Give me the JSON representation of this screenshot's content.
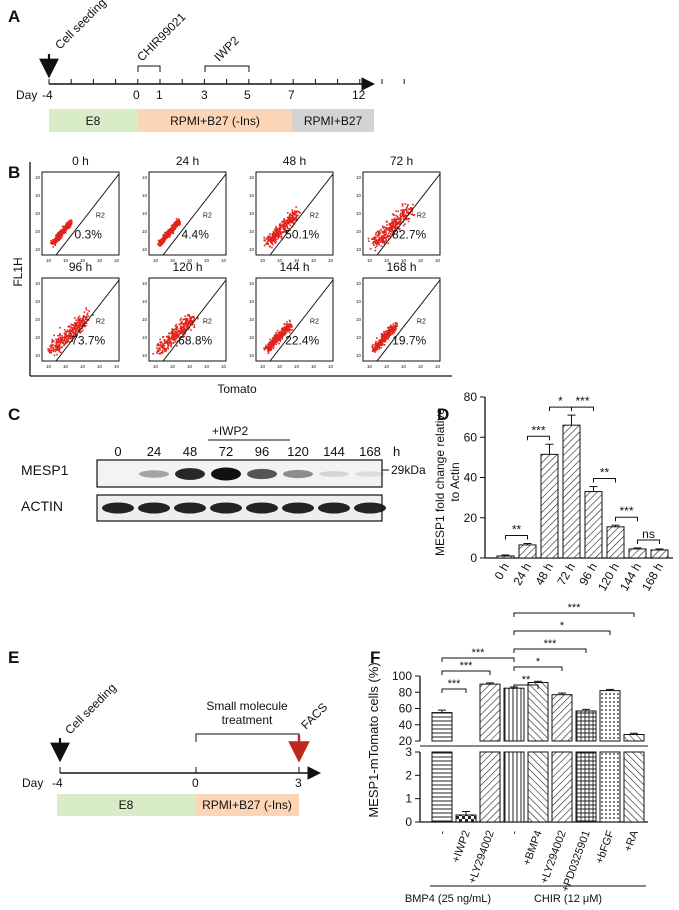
{
  "panels": {
    "a": "A",
    "b": "B",
    "c": "C",
    "d": "D",
    "e": "E",
    "f": "F"
  },
  "timeline_a": {
    "day_label": "Day",
    "ticks": [
      "-4",
      "0",
      "1",
      "3",
      "5",
      "7",
      "12"
    ],
    "annotations": {
      "seed": "Cell seeding",
      "chir": "CHIR99021",
      "iwp2": "IWP2"
    },
    "bars": [
      {
        "label": "E8",
        "color": "#d9ecc8"
      },
      {
        "label": "RPMI+B27 (-Ins)",
        "color": "#fbd5b5"
      },
      {
        "label": "RPMI+B27",
        "color": "#d3d3d3"
      }
    ]
  },
  "flow": {
    "ylabel": "FL1H",
    "xlabel": "Tomato",
    "gate_label": "R2",
    "plots": [
      {
        "time": "0 h",
        "pct": "0.3%",
        "value": 0.3
      },
      {
        "time": "24 h",
        "pct": "4.4%",
        "value": 4.4
      },
      {
        "time": "48 h",
        "pct": "50.1%",
        "value": 50.1
      },
      {
        "time": "72 h",
        "pct": "82.7%",
        "value": 82.7
      },
      {
        "time": "96 h",
        "pct": "73.7%",
        "value": 73.7
      },
      {
        "time": "120 h",
        "pct": "68.8%",
        "value": 68.8
      },
      {
        "time": "144 h",
        "pct": "22.4%",
        "value": 22.4
      },
      {
        "time": "168 h",
        "pct": "19.7%",
        "value": 19.7
      }
    ]
  },
  "western": {
    "lanes": [
      "0",
      "24",
      "48",
      "72",
      "96",
      "120",
      "144",
      "168"
    ],
    "unit": "h",
    "treatment": "+IWP2",
    "proteins": [
      "MESP1",
      "ACTIN"
    ],
    "size_marker": "29kDa",
    "mesp1_intensity": [
      0.0,
      0.3,
      0.85,
      1.0,
      0.65,
      0.4,
      0.08,
      0.05
    ]
  },
  "chart_data": [
    {
      "id": "D",
      "type": "bar",
      "categories": [
        "0 h",
        "24 h",
        "48 h",
        "72 h",
        "96 h",
        "120 h",
        "144 h",
        "168 h"
      ],
      "values": [
        1,
        6.5,
        51.5,
        66,
        33,
        15.5,
        4.5,
        4
      ],
      "errors": [
        0.5,
        0.7,
        5,
        5,
        2.5,
        0.8,
        0.5,
        0.5
      ],
      "ylabel": "MESP1 fold change relative to Actin",
      "ylabel_lines": [
        "MESP1 fold change relative",
        "to Actin"
      ],
      "ylim": [
        0,
        80
      ],
      "yticks": [
        "0",
        "20",
        "40",
        "60",
        "80"
      ],
      "significance": [
        {
          "from": 0,
          "to": 1,
          "label": "**"
        },
        {
          "from": 1,
          "to": 2,
          "label": "***"
        },
        {
          "from": 2,
          "to": 3,
          "label": "*"
        },
        {
          "from": 3,
          "to": 4,
          "label": "***"
        },
        {
          "from": 4,
          "to": 5,
          "label": "**"
        },
        {
          "from": 5,
          "to": 6,
          "label": "***"
        },
        {
          "from": 6,
          "to": 7,
          "label": "ns"
        }
      ]
    },
    {
      "id": "F",
      "type": "bar",
      "categories": [
        "-",
        "+IWP2",
        "+LY294002",
        "-",
        "+BMP4",
        "+LY294002",
        "+PD0325901",
        "+bFGF",
        "+RA"
      ],
      "values": [
        55,
        0.3,
        90,
        85,
        92,
        77,
        57,
        82,
        28
      ],
      "errors": [
        3,
        0.15,
        1.5,
        1.5,
        1.5,
        2,
        2,
        1.5,
        1.5
      ],
      "ylabel": "MESP1-mTomato cells (%)",
      "yticks_lower": [
        "0",
        "1",
        "2",
        "3"
      ],
      "yticks_upper": [
        "20",
        "40",
        "60",
        "80",
        "100"
      ],
      "axis_break": [
        3,
        20
      ],
      "groups": [
        {
          "label": "BMP4 (25 ng/mL)",
          "from": 0,
          "to": 2
        },
        {
          "label": "CHIR (12 μM)",
          "from": 3,
          "to": 8
        }
      ],
      "significance": [
        {
          "from": 0,
          "to": 1,
          "label": "***"
        },
        {
          "from": 0,
          "to": 2,
          "label": "***"
        },
        {
          "from": 0,
          "to": 3,
          "label": "***"
        },
        {
          "from": 3,
          "to": 4,
          "label": "**"
        },
        {
          "from": 3,
          "to": 5,
          "label": "*"
        },
        {
          "from": 3,
          "to": 6,
          "label": "***"
        },
        {
          "from": 3,
          "to": 7,
          "label": "*"
        },
        {
          "from": 3,
          "to": 8,
          "label": "***"
        }
      ]
    }
  ],
  "timeline_e": {
    "day_label": "Day",
    "ticks": [
      "-4",
      "0",
      "3"
    ],
    "annotations": {
      "seed": "Cell seeding",
      "treat_line1": "Small molecule",
      "treat_line2": "treatment",
      "facs": "FACS"
    },
    "bars": [
      {
        "label": "E8",
        "color": "#d9ecc8"
      },
      {
        "label": "RPMI+B27 (-Ins)",
        "color": "#fbd5b5"
      }
    ],
    "facs_color": "#c0281e"
  },
  "colors": {
    "dot": "#e0241b",
    "axis": "#111111"
  }
}
